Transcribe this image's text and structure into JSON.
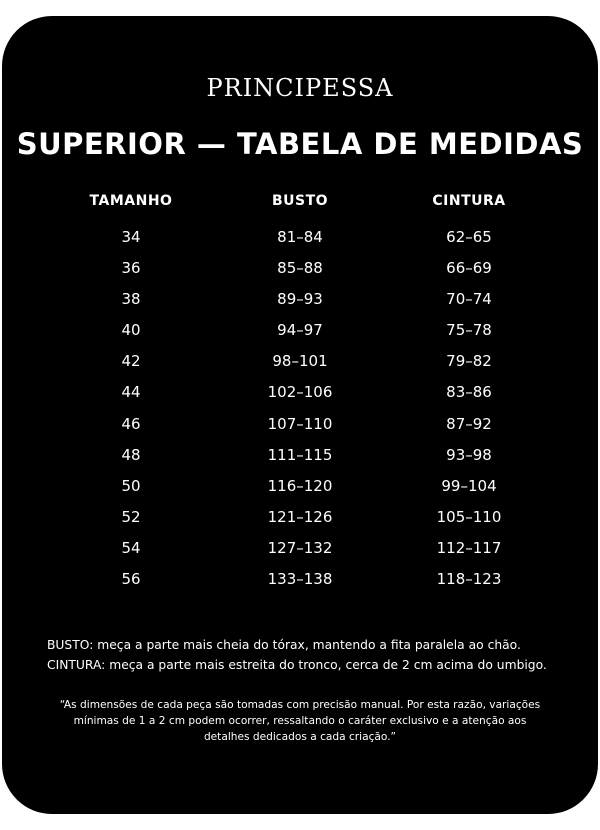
{
  "header": {
    "brand": "PRINCIPESSA",
    "title": "SUPERIOR — TABELA DE MEDIDAS"
  },
  "table": {
    "headers": [
      "TAMANHO",
      "BUSTO",
      "CINTURA"
    ],
    "rows": [
      [
        "34",
        "81–84",
        "62–65"
      ],
      [
        "36",
        "85–88",
        "66–69"
      ],
      [
        "38",
        "89–93",
        "70–74"
      ],
      [
        "40",
        "94–97",
        "75–78"
      ],
      [
        "42",
        "98–101",
        "79–82"
      ],
      [
        "44",
        "102–106",
        "83–86"
      ],
      [
        "46",
        "107–110",
        "87–92"
      ],
      [
        "48",
        "111–115",
        "93–98"
      ],
      [
        "50",
        "116–120",
        "99–104"
      ],
      [
        "52",
        "121–126",
        "105–110"
      ],
      [
        "54",
        "127–132",
        "112–117"
      ],
      [
        "56",
        "133–138",
        "118–123"
      ]
    ]
  },
  "notes": [
    "BUSTO: meça a parte mais cheia do tórax, mantendo a fita paralela ao chão.",
    "CINTURA: meça a parte mais estreita do tronco, cerca de 2 cm acima do umbigo."
  ],
  "quote": [
    "“As dimensões de cada peça são tomadas com precisão manual. Por esta razão, variações",
    "mínimas de 1 a 2 cm podem ocorrer, ressaltando o caráter exclusivo e a atenção aos",
    "detalhes dedicados a cada criação.”"
  ]
}
